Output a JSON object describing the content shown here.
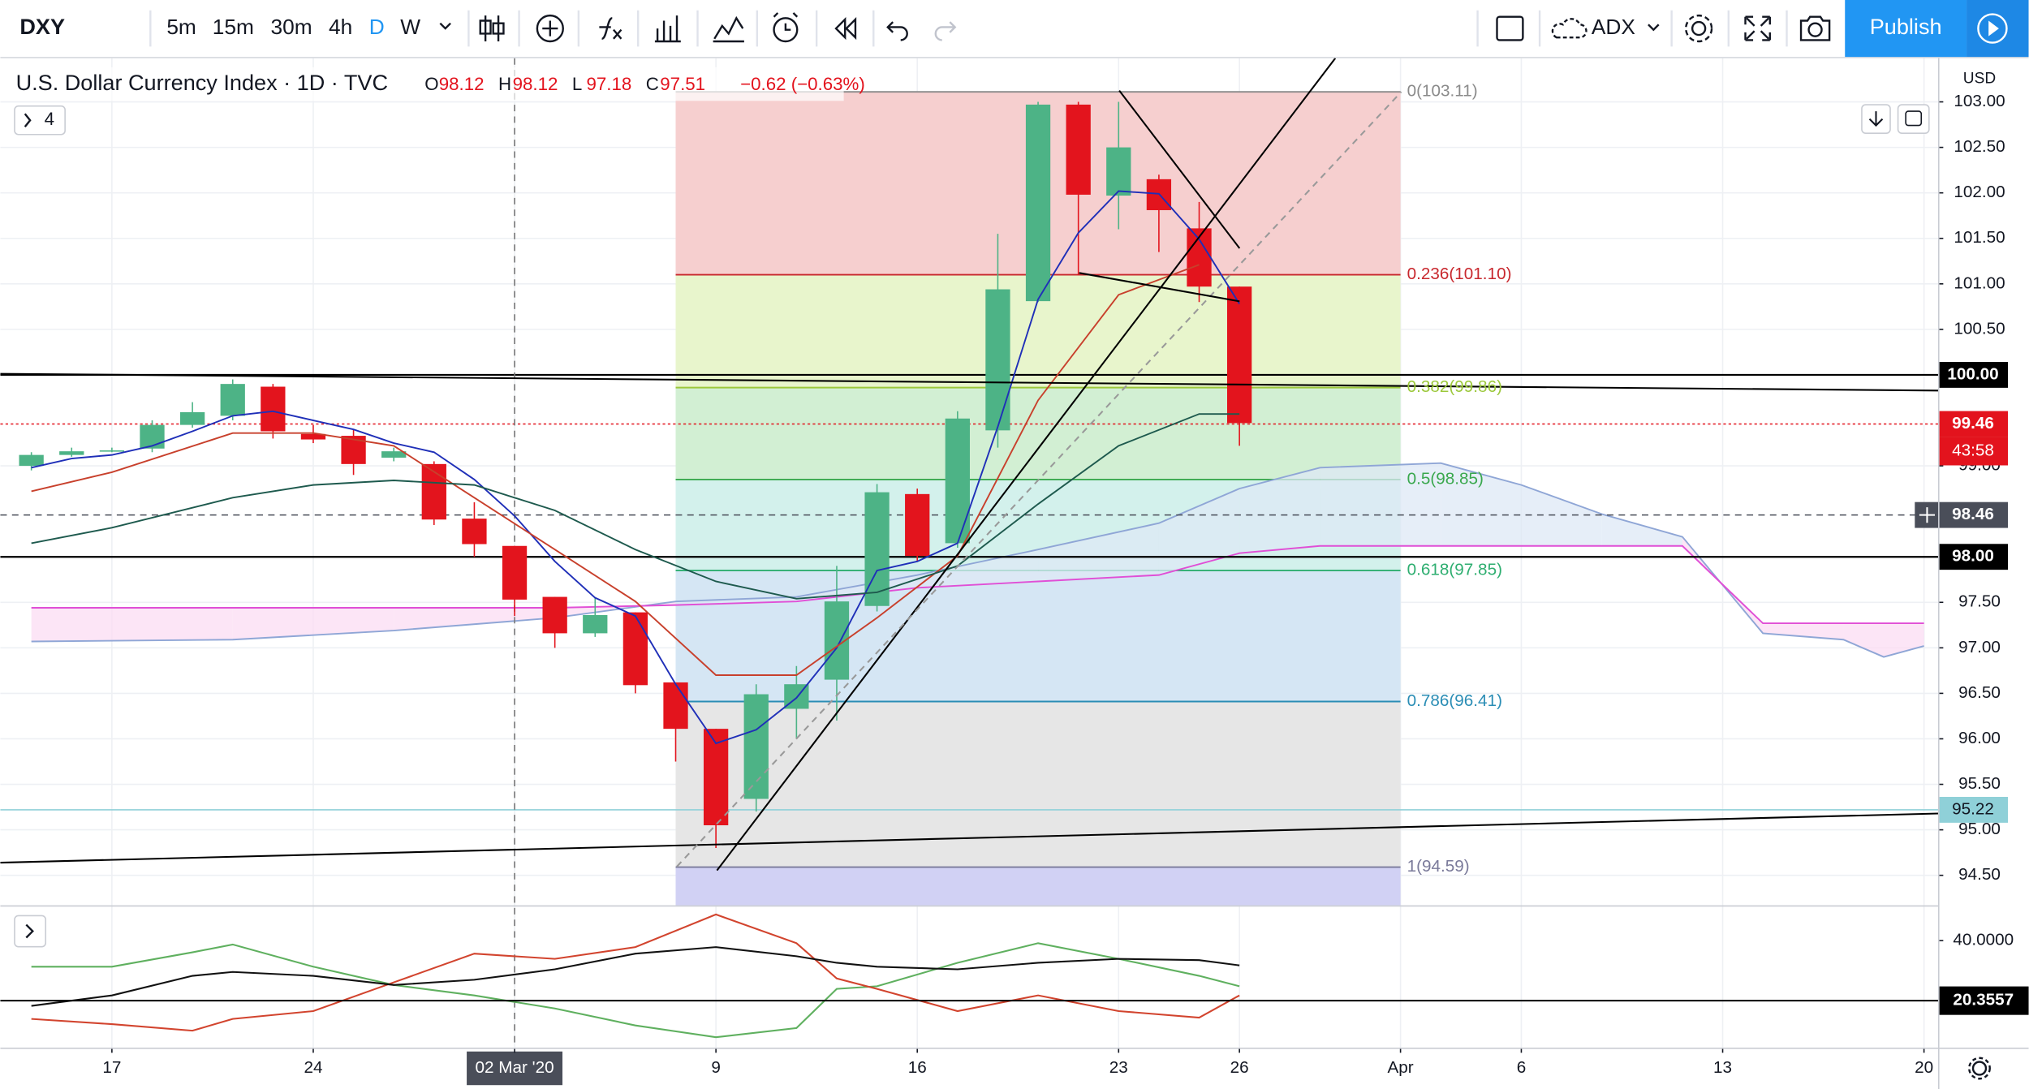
{
  "toolbar": {
    "symbol": "DXY",
    "intervals": [
      "5m",
      "15m",
      "30m",
      "4h",
      "D",
      "W"
    ],
    "active_interval": "D",
    "indicator": "ADX",
    "publish": "Publish"
  },
  "legend": {
    "title": "U.S. Dollar Currency Index · 1D · TVC",
    "ohlc": [
      {
        "key": "O",
        "value": "98.12"
      },
      {
        "key": "H",
        "value": "98.12"
      },
      {
        "key": "L",
        "value": "97.18"
      },
      {
        "key": "C",
        "value": "97.51"
      }
    ],
    "change": "−0.62 (−0.63%)",
    "collapsed_count": "4"
  },
  "chart_data": {
    "type": "candlestick",
    "open": [
      99.0,
      99.12,
      99.16,
      99.19,
      99.45,
      99.55,
      99.87,
      99.35,
      99.33,
      99.09,
      99.02,
      98.42,
      98.12,
      97.56,
      97.16,
      97.39,
      96.62,
      96.11,
      95.34,
      96.33,
      96.65,
      97.46,
      98.69,
      98.15,
      99.39,
      100.81,
      102.97,
      101.97,
      102.15,
      101.61,
      100.97
    ],
    "high": [
      99.15,
      99.2,
      99.2,
      99.5,
      99.7,
      99.95,
      99.9,
      99.45,
      99.4,
      99.2,
      99.05,
      98.6,
      98.12,
      97.56,
      97.55,
      97.39,
      96.62,
      96.11,
      96.6,
      96.8,
      97.9,
      98.8,
      98.75,
      99.6,
      101.55,
      103.0,
      103.0,
      103.0,
      102.2,
      101.9,
      100.97
    ],
    "low": [
      98.95,
      99.1,
      99.15,
      99.15,
      99.42,
      99.5,
      99.3,
      99.25,
      98.9,
      99.05,
      98.35,
      98.0,
      97.35,
      97.0,
      97.12,
      96.5,
      95.75,
      94.8,
      95.2,
      96.0,
      96.2,
      97.4,
      97.95,
      98.1,
      99.2,
      100.8,
      101.1,
      101.6,
      101.35,
      100.8,
      99.22
    ],
    "close": [
      99.12,
      99.16,
      99.17,
      99.45,
      99.59,
      99.9,
      99.38,
      99.29,
      99.02,
      99.16,
      98.41,
      98.14,
      97.53,
      97.16,
      97.36,
      96.59,
      96.11,
      95.05,
      96.49,
      96.6,
      97.51,
      98.71,
      98.01,
      99.52,
      100.94,
      102.97,
      101.98,
      102.5,
      101.81,
      100.97,
      99.47
    ],
    "up_color": "#4db386",
    "down_color": "#e3141d",
    "xlim": [
      -0.77,
      47.35
    ],
    "ylim": [
      94.17,
      103.48
    ],
    "xticks": [
      {
        "value": 2,
        "label": "17"
      },
      {
        "value": 7,
        "label": "24"
      },
      {
        "value": 12,
        "label": "02 Mar '20"
      },
      {
        "value": 17,
        "label": "9"
      },
      {
        "value": 22,
        "label": "16"
      },
      {
        "value": 27,
        "label": "23"
      },
      {
        "value": 30,
        "label": "26"
      },
      {
        "value": 34,
        "label": "Apr"
      },
      {
        "value": 37,
        "label": "6"
      },
      {
        "value": 42,
        "label": "13"
      },
      {
        "value": 47,
        "label": "20"
      }
    ],
    "yticks": [
      {
        "value": 103,
        "label": "103.00"
      },
      {
        "value": 102.5,
        "label": "102.50"
      },
      {
        "value": 102,
        "label": "102.00"
      },
      {
        "value": 101.5,
        "label": "101.50"
      },
      {
        "value": 101,
        "label": "101.00"
      },
      {
        "value": 100.5,
        "label": "100.50"
      },
      {
        "value": 99,
        "label": "99.00"
      },
      {
        "value": 97.5,
        "label": "97.50"
      },
      {
        "value": 97,
        "label": "97.00"
      },
      {
        "value": 96.5,
        "label": "96.50"
      },
      {
        "value": 96,
        "label": "96.00"
      },
      {
        "value": 95.5,
        "label": "95.50"
      },
      {
        "value": 95,
        "label": "95.00"
      },
      {
        "value": 94.5,
        "label": "94.50"
      }
    ],
    "currency": "USD",
    "grid": true,
    "crosshair_x": 12,
    "hlines": [
      {
        "value": 100,
        "label": "100.00",
        "color": "#000000"
      },
      {
        "value": 99.46,
        "label": "99.46",
        "color": "#e3131d",
        "countdown": "43:58"
      },
      {
        "value": 98.46,
        "label": "98.46",
        "color": "#4a4e59"
      },
      {
        "value": 98,
        "label": "98.00",
        "color": "#000000"
      },
      {
        "value": 95.22,
        "label": "95.22",
        "color": "#8fd0d8"
      }
    ],
    "indicators": [
      {
        "color": "#1f2fb8",
        "x": [
          0,
          1,
          2,
          3,
          4,
          5,
          6,
          7,
          8,
          9,
          10,
          11,
          12,
          13,
          14,
          15,
          16,
          17,
          18,
          19,
          20,
          21,
          22,
          23,
          24,
          25,
          26,
          27,
          28,
          29,
          30
        ],
        "values": [
          98.98,
          99.08,
          99.12,
          99.22,
          99.38,
          99.55,
          99.6,
          99.5,
          99.4,
          99.25,
          99.15,
          98.85,
          98.45,
          97.95,
          97.55,
          97.35,
          96.6,
          95.95,
          96.1,
          96.45,
          97.0,
          97.85,
          97.95,
          98.15,
          99.43,
          100.83,
          101.56,
          102.02,
          101.99,
          101.49,
          100.78
        ]
      },
      {
        "color": "#c8402c",
        "x": [
          0,
          2,
          5,
          7,
          9,
          11,
          13,
          15,
          17,
          19,
          21,
          23,
          25,
          27,
          29
        ],
        "values": [
          98.72,
          98.93,
          99.36,
          99.36,
          99.22,
          98.65,
          98.08,
          97.51,
          96.7,
          96.7,
          97.33,
          98.01,
          99.72,
          100.88,
          101.21
        ]
      },
      {
        "color": "#1e5a4e",
        "x": [
          0,
          2,
          5,
          7,
          9,
          11,
          13,
          15,
          17,
          19,
          21,
          23,
          25,
          27,
          29,
          30
        ],
        "values": [
          98.15,
          98.32,
          98.65,
          98.79,
          98.84,
          98.79,
          98.51,
          98.08,
          97.73,
          97.54,
          97.61,
          97.9,
          98.58,
          99.22,
          99.57,
          99.57
        ]
      }
    ],
    "cloud": {
      "x": [
        0,
        5,
        9,
        13,
        16,
        19,
        22,
        25,
        28,
        30,
        32,
        35,
        37,
        39,
        41,
        43,
        45,
        46,
        47
      ],
      "span_a": {
        "color": "#8fa6d6",
        "values": [
          97.07,
          97.09,
          97.19,
          97.33,
          97.51,
          97.56,
          97.8,
          98.08,
          98.37,
          98.75,
          98.98,
          99.03,
          98.79,
          98.47,
          98.22,
          97.16,
          97.09,
          96.9,
          97.02
        ]
      },
      "span_b": {
        "color": "#e04fd6",
        "values": [
          97.44,
          97.44,
          97.44,
          97.44,
          97.47,
          97.51,
          97.66,
          97.73,
          97.8,
          98.04,
          98.12,
          98.12,
          98.12,
          98.12,
          98.12,
          97.27,
          97.27,
          97.27,
          97.27
        ]
      },
      "fill_up": "#dde8f6",
      "fill_down": "#fbdcf3"
    },
    "fib": {
      "start": 16,
      "end": 34,
      "levels": [
        {
          "ratio": 0,
          "price": 103.11,
          "label": "0(103.11)",
          "color": "#8a8a8a"
        },
        {
          "ratio": 0.236,
          "price": 101.1,
          "label": "0.236(101.10)",
          "color": "#c8282e"
        },
        {
          "ratio": 0.382,
          "price": 99.86,
          "label": "0.382(99.86)",
          "color": "#9cc83b"
        },
        {
          "ratio": 0.5,
          "price": 98.85,
          "label": "0.5(98.85)",
          "color": "#3aa84e"
        },
        {
          "ratio": 0.618,
          "price": 97.85,
          "label": "0.618(97.85)",
          "color": "#2eae70"
        },
        {
          "ratio": 0.786,
          "price": 96.41,
          "label": "0.786(96.41)",
          "color": "#2a8db5"
        },
        {
          "ratio": 1,
          "price": 94.59,
          "label": "1(94.59)",
          "color": "#7a7a9a"
        }
      ],
      "zone_colors": [
        "#f6cfcf",
        "#e8f5cc",
        "#d2efd3",
        "#d3f1ec",
        "#d5e6f4",
        "#e6e6e6",
        "#d1d1f4"
      ]
    },
    "adx": {
      "ylim": [
        5,
        51.1
      ],
      "yticks": [
        {
          "value": 40,
          "label": "40.0000"
        }
      ],
      "level": {
        "value": 20.3557,
        "label": "20.3557"
      },
      "x": [
        0,
        2,
        4,
        5,
        7,
        9,
        11,
        13,
        15,
        17,
        19,
        20,
        21,
        23,
        25,
        27,
        29,
        30
      ],
      "series": [
        {
          "color": "#5fb05f",
          "values": [
            31.46,
            31.46,
            36.16,
            38.72,
            31.46,
            25.48,
            22.07,
            17.8,
            12.25,
            8.4,
            11.39,
            24.2,
            25.06,
            32.74,
            39.15,
            34.02,
            28.47,
            25.06
          ]
        },
        {
          "color": "#d2442e",
          "values": [
            14.38,
            12.67,
            10.54,
            14.38,
            16.94,
            26.34,
            35.73,
            34.02,
            37.87,
            48.54,
            39.15,
            27.62,
            24.2,
            16.94,
            22.07,
            16.94,
            14.81,
            22.07
          ]
        },
        {
          "color": "#111111",
          "values": [
            18.65,
            22.07,
            28.47,
            29.75,
            28.47,
            25.48,
            27.19,
            30.61,
            35.73,
            37.87,
            34.88,
            32.74,
            31.46,
            30.61,
            32.74,
            34.02,
            33.6,
            31.89
          ]
        }
      ]
    }
  }
}
